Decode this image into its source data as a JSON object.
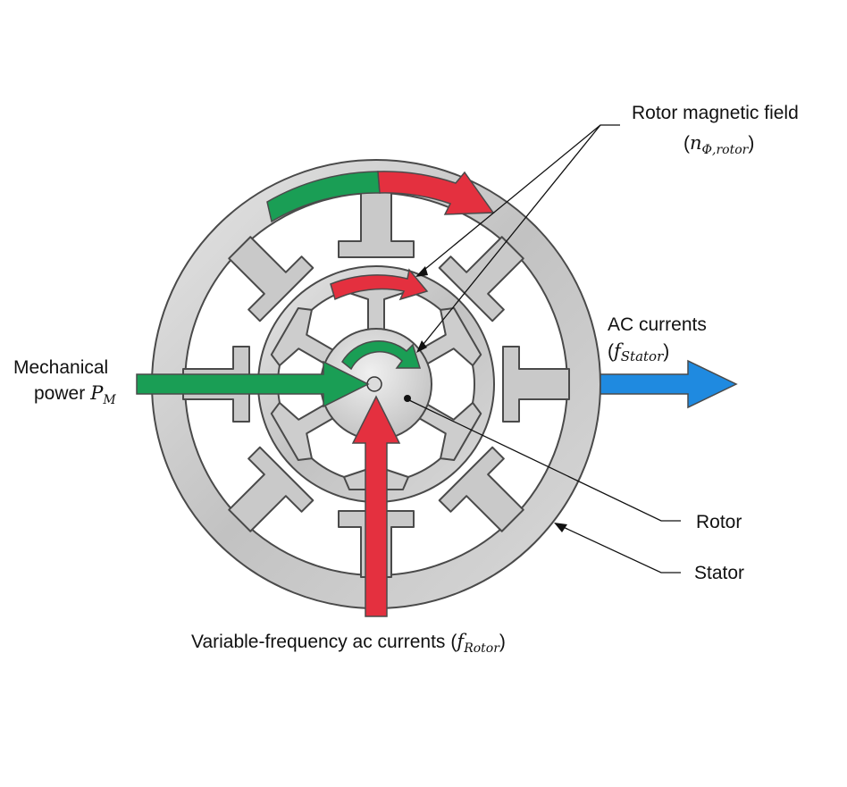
{
  "labels": {
    "rotor_field_line1": "Rotor magnetic field",
    "rotor_field_sym": "n",
    "rotor_field_sub": "Φ,rotor",
    "ac_line1": "AC currents",
    "ac_sym": "f",
    "ac_sub": "Stator",
    "mech_line1": "Mechanical",
    "mech_line2": "power",
    "mech_sym": "P",
    "mech_sub": "M",
    "var_text": "Variable-frequency ac currents",
    "var_sym": "f",
    "var_sub": "Rotor",
    "rotor": "Rotor",
    "stator": "Stator"
  },
  "colors": {
    "green": "#1a9e55",
    "red": "#e4303f",
    "blue": "#1f8ae0",
    "metal": "#c7c7c7",
    "outline": "#4a4a4a"
  }
}
